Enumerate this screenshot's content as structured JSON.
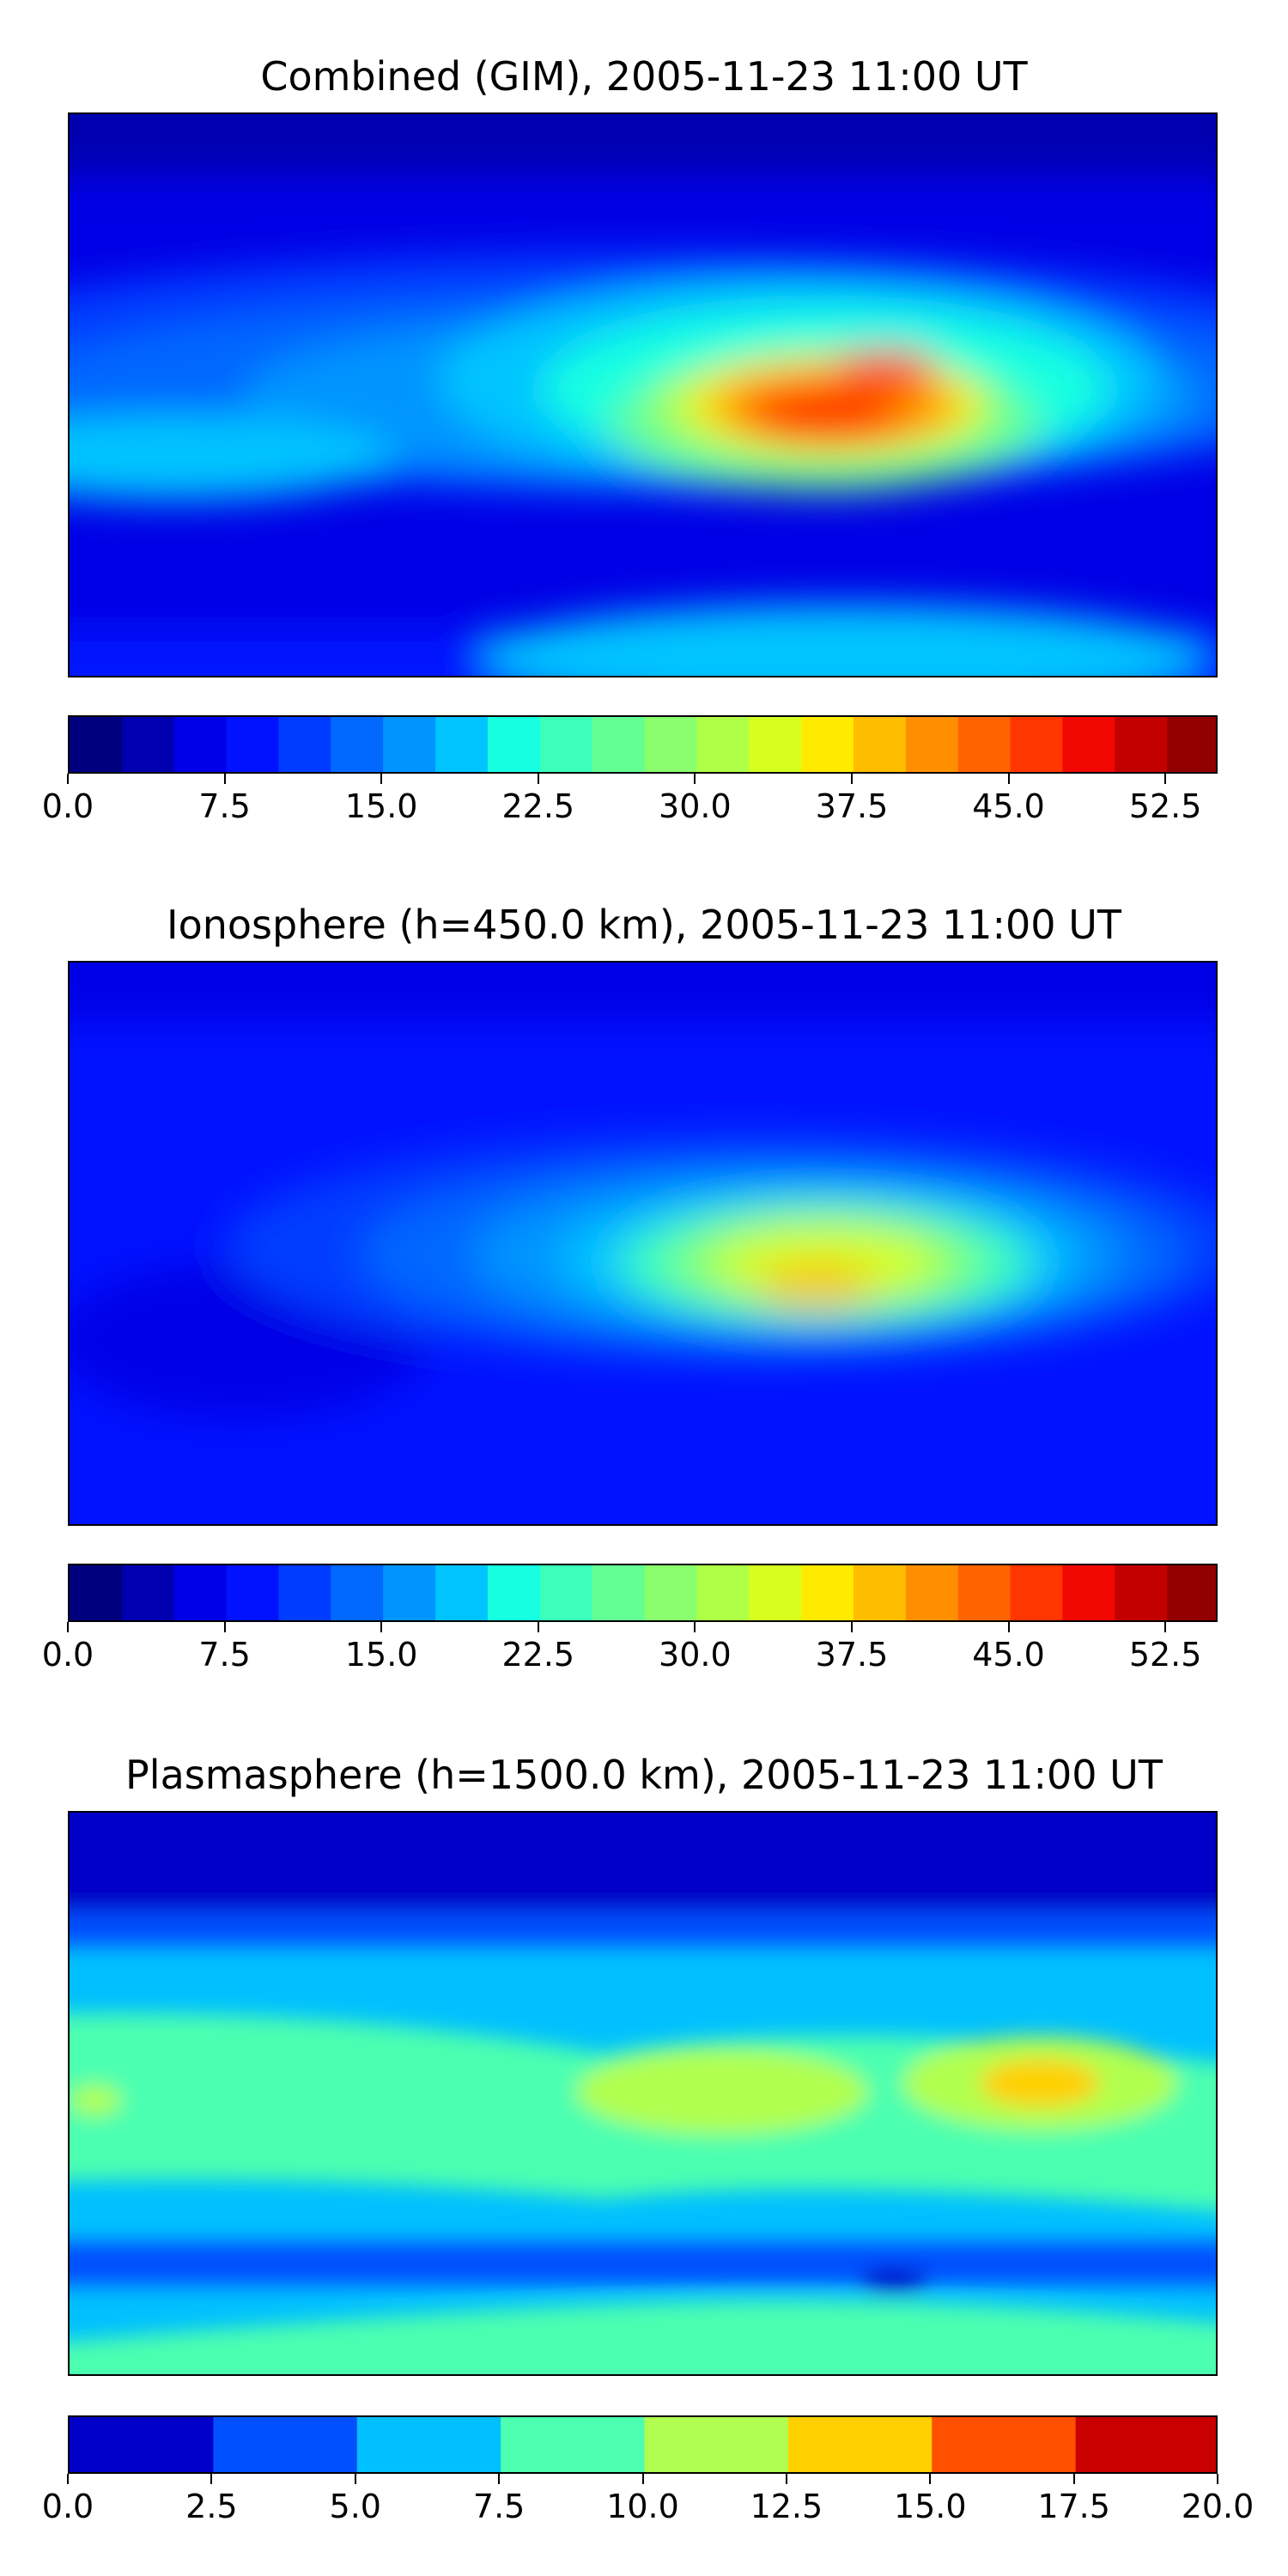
{
  "chart_data": [
    {
      "type": "heatmap",
      "title": "Combined (GIM), 2005-11-23 11:00 UT",
      "colorbar": {
        "min": 0.0,
        "max": 55.0,
        "levels": 22,
        "tick_values": [
          0.0,
          7.5,
          15.0,
          22.5,
          30.0,
          37.5,
          45.0,
          52.5
        ],
        "tick_labels": [
          "0.0",
          "7.5",
          "15.0",
          "22.5",
          "30.0",
          "37.5",
          "45.0",
          "52.5"
        ],
        "colors": [
          "#00007f",
          "#0000b0",
          "#0000e6",
          "#0012ff",
          "#003cff",
          "#0068ff",
          "#0094ff",
          "#00c4ff",
          "#16ffe1",
          "#3cffba",
          "#63ff94",
          "#89ff6d",
          "#b0ff47",
          "#d6ff20",
          "#ffea00",
          "#ffbd00",
          "#ff8f00",
          "#ff6300",
          "#ff3600",
          "#f10800",
          "#c30000",
          "#930000"
        ]
      }
    },
    {
      "type": "heatmap",
      "title": "Ionosphere  (h=450.0 km), 2005-11-23 11:00 UT",
      "colorbar": {
        "min": 0.0,
        "max": 55.0,
        "levels": 22,
        "tick_values": [
          0.0,
          7.5,
          15.0,
          22.5,
          30.0,
          37.5,
          45.0,
          52.5
        ],
        "tick_labels": [
          "0.0",
          "7.5",
          "15.0",
          "22.5",
          "30.0",
          "37.5",
          "45.0",
          "52.5"
        ],
        "colors": [
          "#00007f",
          "#0000b0",
          "#0000e6",
          "#0012ff",
          "#003cff",
          "#0068ff",
          "#0094ff",
          "#00c4ff",
          "#16ffe1",
          "#3cffba",
          "#63ff94",
          "#89ff6d",
          "#b0ff47",
          "#d6ff20",
          "#ffea00",
          "#ffbd00",
          "#ff8f00",
          "#ff6300",
          "#ff3600",
          "#f10800",
          "#c30000",
          "#930000"
        ]
      }
    },
    {
      "type": "heatmap",
      "title": "Plasmasphere (h=1500.0 km), 2005-11-23 11:00 UT",
      "colorbar": {
        "min": 0.0,
        "max": 20.0,
        "levels": 8,
        "tick_values": [
          0.0,
          2.5,
          5.0,
          7.5,
          10.0,
          12.5,
          15.0,
          17.5,
          20.0
        ],
        "tick_labels": [
          "0.0",
          "2.5",
          "5.0",
          "7.5",
          "10.0",
          "12.5",
          "15.0",
          "17.5",
          "20.0"
        ],
        "colors": [
          "#0000c8",
          "#0050ff",
          "#00c0ff",
          "#4cffb0",
          "#b0ff50",
          "#ffd000",
          "#ff5000",
          "#c80000"
        ]
      }
    }
  ]
}
